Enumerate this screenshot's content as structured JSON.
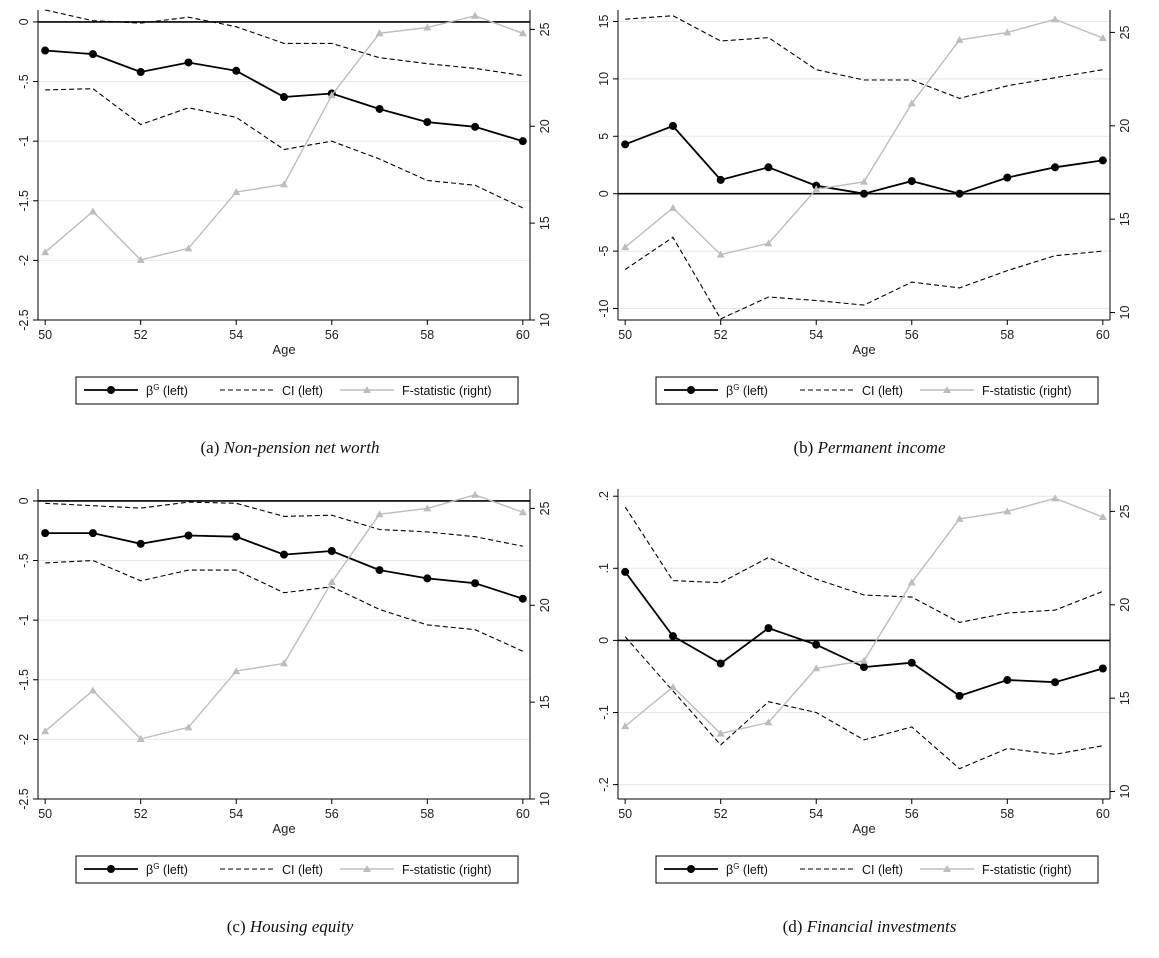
{
  "chart_data": [
    {
      "type": "line",
      "panel_label": "(a)",
      "title": "Non-pension net worth",
      "xlabel": "Age",
      "x": [
        50,
        51,
        52,
        53,
        54,
        55,
        56,
        57,
        58,
        59,
        60
      ],
      "xticks": [
        50,
        52,
        54,
        56,
        58,
        60
      ],
      "ylim_left": [
        -2.5,
        0.1
      ],
      "yticks_left": [
        "0",
        "-.5",
        "-1",
        "-1.5",
        "-2",
        "-2.5"
      ],
      "yticks_left_values": [
        0,
        -0.5,
        -1,
        -1.5,
        -2,
        -2.5
      ],
      "ylim_right": [
        10,
        26
      ],
      "yticks_right": [
        10,
        15,
        20,
        25
      ],
      "series": [
        {
          "name": "β^G (left)",
          "axis": "left",
          "style": "solid-marker",
          "values": [
            -0.24,
            -0.27,
            -0.42,
            -0.34,
            -0.41,
            -0.63,
            -0.6,
            -0.73,
            -0.84,
            -0.88,
            -1.0
          ]
        },
        {
          "name": "CI (left)",
          "axis": "left",
          "style": "dashed",
          "values": [
            -0.57,
            -0.56,
            -0.86,
            -0.72,
            -0.8,
            -1.07,
            -1.0,
            -1.15,
            -1.33,
            -1.37,
            -1.56
          ]
        },
        {
          "name": "",
          "axis": "left",
          "style": "dashed",
          "values": [
            0.1,
            0.01,
            -0.01,
            0.04,
            -0.04,
            -0.18,
            -0.18,
            -0.3,
            -0.35,
            -0.39,
            -0.45
          ]
        },
        {
          "name": "F-statistic (right)",
          "axis": "right",
          "style": "gray-triangle",
          "values": [
            13.5,
            15.6,
            13.1,
            13.7,
            16.6,
            17.0,
            21.6,
            24.8,
            25.1,
            25.7,
            24.8
          ]
        }
      ],
      "legend": [
        "β^G (left)",
        "CI (left)",
        "F-statistic (right)"
      ]
    },
    {
      "type": "line",
      "panel_label": "(b)",
      "title": "Permanent income",
      "xlabel": "Age",
      "x": [
        50,
        51,
        52,
        53,
        54,
        55,
        56,
        57,
        58,
        59,
        60
      ],
      "xticks": [
        50,
        52,
        54,
        56,
        58,
        60
      ],
      "ylim_left": [
        -11,
        16
      ],
      "yticks_left": [
        "15",
        "10",
        "5",
        "0",
        "-5",
        "-10"
      ],
      "yticks_left_values": [
        15,
        10,
        5,
        0,
        -5,
        -10
      ],
      "ylim_right": [
        9.6,
        26.2
      ],
      "yticks_right": [
        10,
        15,
        20,
        25
      ],
      "series": [
        {
          "name": "β^G (left)",
          "axis": "left",
          "style": "solid-marker",
          "values": [
            4.3,
            5.9,
            1.2,
            2.3,
            0.7,
            0.0,
            1.1,
            0.0,
            1.4,
            2.3,
            2.9
          ]
        },
        {
          "name": "CI (left)",
          "axis": "left",
          "style": "dashed",
          "values": [
            -6.6,
            -3.8,
            -10.9,
            -9.0,
            -9.3,
            -9.7,
            -7.7,
            -8.2,
            -6.7,
            -5.4,
            -5.0
          ]
        },
        {
          "name": "",
          "axis": "left",
          "style": "dashed",
          "values": [
            15.2,
            15.5,
            13.3,
            13.6,
            10.8,
            9.9,
            9.9,
            8.3,
            9.4,
            10.1,
            10.8
          ]
        },
        {
          "name": "F-statistic (right)",
          "axis": "right",
          "style": "gray-triangle",
          "values": [
            13.5,
            15.6,
            13.1,
            13.7,
            16.6,
            17.0,
            21.2,
            24.6,
            25.0,
            25.7,
            24.7
          ]
        }
      ],
      "legend": [
        "β^G (left)",
        "CI (left)",
        "F-statistic (right)"
      ]
    },
    {
      "type": "line",
      "panel_label": "(c)",
      "title": "Housing equity",
      "xlabel": "Age",
      "x": [
        50,
        51,
        52,
        53,
        54,
        55,
        56,
        57,
        58,
        59,
        60
      ],
      "xticks": [
        50,
        52,
        54,
        56,
        58,
        60
      ],
      "ylim_left": [
        -2.5,
        0.1
      ],
      "yticks_left": [
        "0",
        "-.5",
        "-1",
        "-1.5",
        "-2",
        "-2.5"
      ],
      "yticks_left_values": [
        0,
        -0.5,
        -1,
        -1.5,
        -2,
        -2.5
      ],
      "ylim_right": [
        10,
        26
      ],
      "yticks_right": [
        10,
        15,
        20,
        25
      ],
      "series": [
        {
          "name": "β^G (left)",
          "axis": "left",
          "style": "solid-marker",
          "values": [
            -0.27,
            -0.27,
            -0.36,
            -0.29,
            -0.3,
            -0.45,
            -0.42,
            -0.58,
            -0.65,
            -0.69,
            -0.82
          ]
        },
        {
          "name": "CI (left)",
          "axis": "left",
          "style": "dashed",
          "values": [
            -0.52,
            -0.5,
            -0.67,
            -0.58,
            -0.58,
            -0.77,
            -0.72,
            -0.91,
            -1.04,
            -1.08,
            -1.26
          ]
        },
        {
          "name": "",
          "axis": "left",
          "style": "dashed",
          "values": [
            -0.02,
            -0.04,
            -0.06,
            -0.01,
            -0.02,
            -0.13,
            -0.12,
            -0.24,
            -0.26,
            -0.3,
            -0.38
          ]
        },
        {
          "name": "F-statistic (right)",
          "axis": "right",
          "style": "gray-triangle",
          "values": [
            13.5,
            15.6,
            13.1,
            13.7,
            16.6,
            17.0,
            21.2,
            24.7,
            25.0,
            25.7,
            24.8
          ]
        }
      ],
      "legend": [
        "β^G (left)",
        "CI (left)",
        "F-statistic (right)"
      ]
    },
    {
      "type": "line",
      "panel_label": "(d)",
      "title": "Financial investments",
      "xlabel": "Age",
      "x": [
        50,
        51,
        52,
        53,
        54,
        55,
        56,
        57,
        58,
        59,
        60
      ],
      "xticks": [
        50,
        52,
        54,
        56,
        58,
        60
      ],
      "ylim_left": [
        -0.22,
        0.21
      ],
      "yticks_left": [
        ".2",
        ".1",
        "0",
        "-.1",
        "-.2"
      ],
      "yticks_left_values": [
        0.2,
        0.1,
        0,
        -0.1,
        -0.2
      ],
      "ylim_right": [
        9.6,
        26.2
      ],
      "yticks_right": [
        10,
        15,
        20,
        25
      ],
      "series": [
        {
          "name": "β^G (left)",
          "axis": "left",
          "style": "solid-marker",
          "values": [
            0.095,
            0.006,
            -0.032,
            0.017,
            -0.006,
            -0.037,
            -0.031,
            -0.077,
            -0.055,
            -0.058,
            -0.039
          ]
        },
        {
          "name": "CI (left)",
          "axis": "left",
          "style": "dashed",
          "values": [
            0.005,
            -0.07,
            -0.145,
            -0.085,
            -0.1,
            -0.138,
            -0.12,
            -0.178,
            -0.15,
            -0.158,
            -0.146
          ]
        },
        {
          "name": "",
          "axis": "left",
          "style": "dashed",
          "values": [
            0.185,
            0.083,
            0.08,
            0.115,
            0.085,
            0.063,
            0.06,
            0.025,
            0.038,
            0.042,
            0.068
          ]
        },
        {
          "name": "F-statistic (right)",
          "axis": "right",
          "style": "gray-triangle",
          "values": [
            13.5,
            15.6,
            13.1,
            13.7,
            16.6,
            17.0,
            21.2,
            24.6,
            25.0,
            25.7,
            24.7
          ]
        }
      ],
      "legend": [
        "β^G (left)",
        "CI (left)",
        "F-statistic (right)"
      ]
    }
  ],
  "colors": {
    "beta": "#000000",
    "ci": "#000000",
    "fstat": "#bdbdbd",
    "grid": "#e8e8e8"
  }
}
